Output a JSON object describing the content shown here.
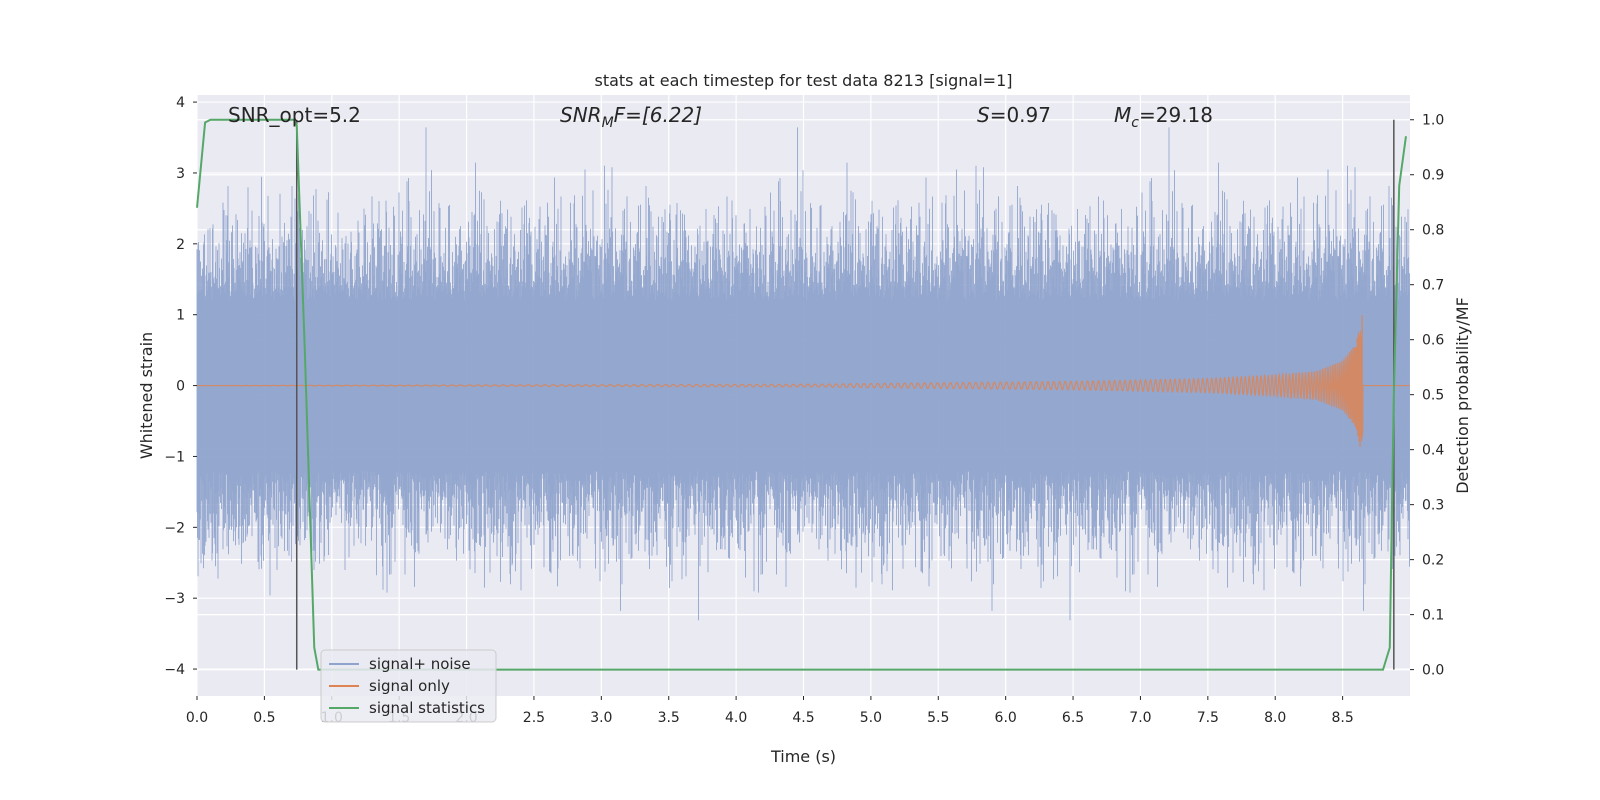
{
  "chart_data": {
    "type": "line",
    "title": "stats at each timestep for test data 8213 [signal=1]",
    "xlabel": "Time (s)",
    "ylabel": "Whitened strain",
    "ylabel_right": "Detection probability/MF",
    "xlim": [
      0.0,
      9.0
    ],
    "ylim": [
      -4.38,
      4.1
    ],
    "ylim_right": [
      -0.048,
      1.045
    ],
    "x_ticks": [
      "0.0",
      "0.5",
      "1.0",
      "1.5",
      "2.0",
      "2.5",
      "3.0",
      "3.5",
      "4.0",
      "4.5",
      "5.0",
      "5.5",
      "6.0",
      "6.5",
      "7.0",
      "7.5",
      "8.0",
      "8.5"
    ],
    "y_ticks_left": [
      "4",
      "3",
      "2",
      "1",
      "0",
      "−1",
      "−2",
      "−3",
      "−4"
    ],
    "y_ticks_right": [
      "1.0",
      "0.9",
      "0.8",
      "0.7",
      "0.6",
      "0.5",
      "0.4",
      "0.3",
      "0.2",
      "0.1",
      "0.0"
    ],
    "grid": true,
    "legend_position": "lower-left",
    "annotations": {
      "snr_opt": "SNR_opt=5.2",
      "snr_mf_main": "SNR",
      "snr_mf_sub": "M",
      "snr_mf_rest": "F=[6.22]",
      "s_main": "S",
      "s_rest": "=0.97",
      "mc_main": "M",
      "mc_sub": "c",
      "mc_rest": "=29.18"
    },
    "markers_x": [
      0.74,
      8.88
    ],
    "series": [
      {
        "name": "signal+ noise",
        "color": "#8fa3cc",
        "axis": "left",
        "description_values": {
          "x_range": [
            0.0,
            9.0
          ],
          "envelope_min": -4.0,
          "envelope_max": 3.7
        }
      },
      {
        "name": "signal only",
        "color": "#dd8452",
        "axis": "left",
        "x": [
          0.0,
          4.6,
          5.0,
          5.5,
          6.0,
          6.5,
          7.0,
          7.5,
          8.0,
          8.3,
          8.5,
          8.6,
          8.65,
          8.66
        ],
        "amplitude": [
          0.0,
          0.02,
          0.03,
          0.04,
          0.05,
          0.06,
          0.08,
          0.1,
          0.15,
          0.2,
          0.35,
          0.6,
          1.05,
          0.0
        ]
      },
      {
        "name": "signal statistics",
        "color": "#55a868",
        "axis": "right",
        "x": [
          0.0,
          0.06,
          0.1,
          0.2,
          0.5,
          0.72,
          0.74,
          0.8,
          0.87,
          0.9,
          1.0,
          4.0,
          8.0,
          8.8,
          8.85,
          8.88,
          8.92,
          8.97
        ],
        "y": [
          0.84,
          0.995,
          1.0,
          1.0,
          1.0,
          1.0,
          0.99,
          0.58,
          0.04,
          0.0,
          0.0,
          0.0,
          0.0,
          0.0,
          0.04,
          0.5,
          0.88,
          0.97
        ]
      }
    ]
  }
}
